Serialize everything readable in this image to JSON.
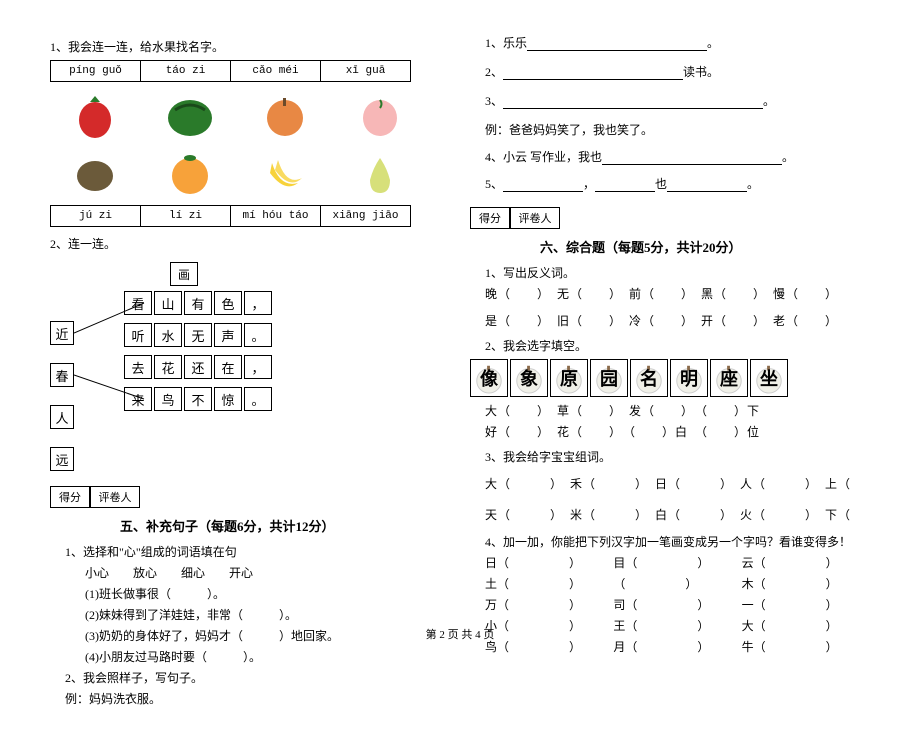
{
  "left": {
    "q1": {
      "label": "1、我会连一连，给水果找名字。",
      "pinyin_top": [
        "píng guǒ",
        "táo zi",
        "cǎo méi",
        "xī guā"
      ],
      "pinyin_bottom": [
        "jú zi",
        "lí zi",
        "mí hóu táo",
        "xiāng jiāo"
      ],
      "fruit_colors_row1": [
        "#d42a2a",
        "#2a7a2a",
        "#e88844",
        "#f7b7b7"
      ],
      "fruit_colors_row2": [
        "#6b5a3a",
        "#f7a23a",
        "#f7d23a",
        "#d7e07a"
      ]
    },
    "q2": {
      "label": "2、连一连。",
      "top_char": "画",
      "left_chars": [
        "近",
        "春",
        "人",
        "远"
      ],
      "poem": [
        [
          "看",
          "山",
          "有",
          "色",
          "，"
        ],
        [
          "听",
          "水",
          "无",
          "声",
          "。"
        ],
        [
          "去",
          "花",
          "还",
          "在",
          "，"
        ],
        [
          "来",
          "鸟",
          "不",
          "惊",
          "。"
        ]
      ]
    },
    "section5": {
      "score_labels": [
        "得分",
        "评卷人"
      ],
      "title": "五、补充句子（每题6分，共计12分）",
      "q1_label": "1、选择和\"心\"组成的词语填在句",
      "q1_words": "小心　　放心　　细心　　开心",
      "q1_items": [
        "(1)班长做事很（　　　）。",
        "(2)妹妹得到了洋娃娃，非常（　　　）。",
        "(3)奶奶的身体好了，妈妈才（　　　）地回家。",
        "(4)小朋友过马路时要（　　　）。"
      ],
      "q2_label": "2、我会照样子，写句子。",
      "q2_example": "例：妈妈洗衣服。"
    }
  },
  "right": {
    "fill": {
      "item1": "1、乐乐",
      "item1_end": "。",
      "item2": "2、",
      "item2_end": "读书。",
      "item3": "3、",
      "item3_end": "。",
      "example": "例：爸爸妈妈笑了，我也笑了。",
      "item4": "4、小云 写作业，我也",
      "item4_end": "。",
      "item5": "5、",
      "item5_mid": "，",
      "item5_mid2": "也",
      "item5_end": "。"
    },
    "section6": {
      "score_labels": [
        "得分",
        "评卷人"
      ],
      "title": "六、综合题（每题5分，共计20分）",
      "q1_label": "1、写出反义词。",
      "q1_line1": "晚（　　）　无（　　）　前（　　）　黑（　　）　慢（　　）",
      "q1_line2": "是（　　）　旧（　　）　冷（　　）　开（　　）　老（　　）",
      "q2_label": "2、我会选字填空。",
      "q2_chars": [
        "像",
        "象",
        "原",
        "园",
        "名",
        "明",
        "座",
        "坐"
      ],
      "q2_line1": "大（　　）　草（　　）　发（　　）　（　　）下",
      "q2_line2": "好（　　）　花（　　）　（　　）白　（　　）位",
      "q3_label": "3、我会给字宝宝组词。",
      "q3_line1": "大（　　　）　禾（　　　）　日（　　　）　人（　　　）　上（",
      "q3_line2": "天（　　　）　米（　　　）　白（　　　）　火（　　　）　下（",
      "q4_label": "4、加一加，你能把下列汉字加一笔画变成另一个字吗？看谁变得多！",
      "q4_rows": [
        [
          "日（　　　　　）",
          "目（　　　　　）",
          "云（　　　　　）"
        ],
        [
          "土（　　　　　）",
          "（　　　　　）",
          "木（　　　　　）"
        ],
        [
          "万（　　　　　）",
          "司（　　　　　）",
          "一（　　　　　）"
        ],
        [
          "小（　　　　　）",
          "王（　　　　　）",
          "大（　　　　　）"
        ],
        [
          "鸟（　　　　　）",
          "月（　　　　　）",
          "牛（　　　　　）"
        ]
      ]
    }
  },
  "footer": "第 2 页 共 4 页"
}
